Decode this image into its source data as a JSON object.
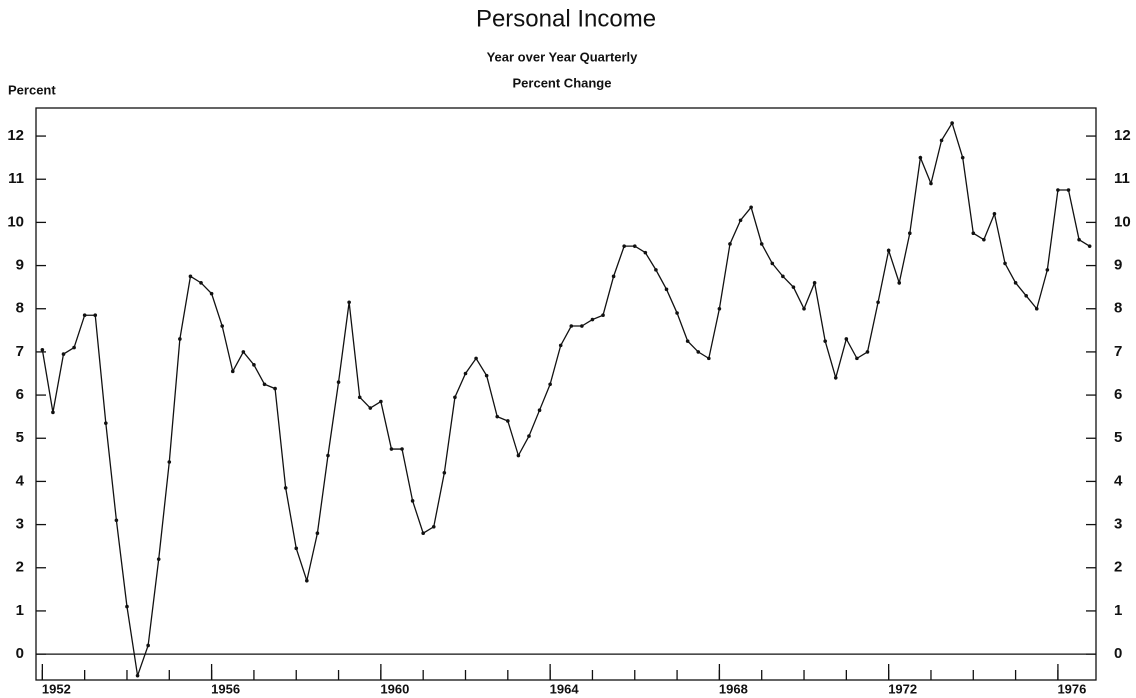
{
  "chart_data": {
    "type": "line",
    "title": "Personal Income",
    "subtitle": [
      "Year over Year Quarterly",
      "Percent Change"
    ],
    "ylabel": "Percent",
    "x": [
      1952,
      1952.25,
      1952.5,
      1952.75,
      1953,
      1953.25,
      1953.5,
      1953.75,
      1954,
      1954.25,
      1954.5,
      1954.75,
      1955,
      1955.25,
      1955.5,
      1955.75,
      1956,
      1956.25,
      1956.5,
      1956.75,
      1957,
      1957.25,
      1957.5,
      1957.75,
      1958,
      1958.25,
      1958.5,
      1958.75,
      1959,
      1959.25,
      1959.5,
      1959.75,
      1960,
      1960.25,
      1960.5,
      1960.75,
      1961,
      1961.25,
      1961.5,
      1961.75,
      1962,
      1962.25,
      1962.5,
      1962.75,
      1963,
      1963.25,
      1963.5,
      1963.75,
      1964,
      1964.25,
      1964.5,
      1964.75,
      1965,
      1965.25,
      1965.5,
      1965.75,
      1966,
      1966.25,
      1966.5,
      1966.75,
      1967,
      1967.25,
      1967.5,
      1967.75,
      1968,
      1968.25,
      1968.5,
      1968.75,
      1969,
      1969.25,
      1969.5,
      1969.75,
      1970,
      1970.25,
      1970.5,
      1970.75,
      1971,
      1971.25,
      1971.5,
      1971.75,
      1972,
      1972.25,
      1972.5,
      1972.75,
      1973,
      1973.25,
      1973.5,
      1973.75,
      1974,
      1974.25,
      1974.5,
      1974.75,
      1975,
      1975.25,
      1975.5,
      1975.75,
      1976,
      1976.25,
      1976.5,
      1976.75
    ],
    "series": [
      {
        "name": "Personal Income",
        "color": "#111111",
        "values": [
          7.05,
          5.6,
          6.95,
          7.1,
          7.85,
          7.85,
          5.35,
          3.1,
          1.1,
          -0.5,
          0.2,
          2.2,
          4.45,
          7.3,
          8.75,
          8.6,
          8.35,
          7.6,
          6.55,
          7.0,
          6.7,
          6.25,
          6.15,
          3.85,
          2.45,
          1.7,
          2.8,
          4.6,
          6.3,
          8.15,
          5.95,
          5.7,
          5.85,
          4.75,
          4.75,
          3.55,
          2.8,
          2.95,
          4.2,
          5.95,
          6.5,
          6.85,
          6.45,
          5.5,
          5.4,
          4.6,
          5.05,
          5.65,
          6.25,
          7.15,
          7.6,
          7.6,
          7.75,
          7.85,
          8.75,
          9.45,
          9.45,
          9.3,
          8.9,
          8.45,
          7.9,
          7.25,
          7.0,
          6.85,
          8.0,
          9.5,
          10.05,
          10.35,
          9.5,
          9.05,
          8.75,
          8.5,
          8.0,
          8.6,
          7.25,
          6.4,
          7.3,
          6.85,
          7.0,
          8.15,
          9.35,
          8.6,
          9.75,
          11.5,
          10.9,
          11.9,
          12.3,
          11.5,
          9.75,
          9.6,
          10.2,
          9.05,
          8.6,
          8.3,
          8.0,
          8.9,
          10.75,
          10.75,
          9.6,
          9.45
        ]
      }
    ],
    "xlim": [
      1951.85,
      1976.9
    ],
    "xticks": [
      1952,
      1956,
      1960,
      1964,
      1968,
      1972,
      1976
    ],
    "xticks_minor": [
      1952,
      1953,
      1954,
      1955,
      1956,
      1957,
      1958,
      1959,
      1960,
      1961,
      1962,
      1963,
      1964,
      1965,
      1966,
      1967,
      1968,
      1969,
      1970,
      1971,
      1972,
      1973,
      1974,
      1975,
      1976
    ],
    "ylim": [
      -0.6,
      12.65
    ],
    "yticks": [
      0,
      1,
      2,
      3,
      4,
      5,
      6,
      7,
      8,
      9,
      10,
      11,
      12
    ],
    "grid": false
  }
}
